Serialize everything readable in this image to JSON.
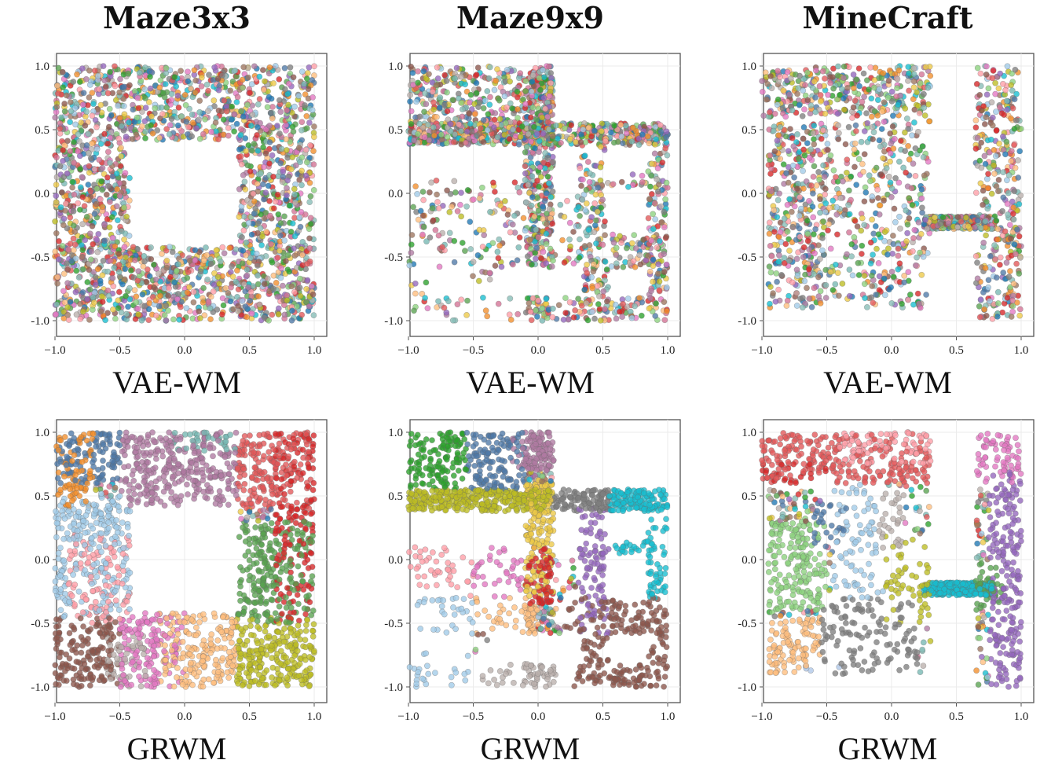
{
  "column_titles": [
    "Maze3x3",
    "Maze9x9",
    "MineCraft"
  ],
  "row_labels": [
    "VAE-WM",
    "GRWM"
  ],
  "palette": [
    "#4e79a7",
    "#f28e2b",
    "#59a14f",
    "#e15759",
    "#76b7b2",
    "#edc948",
    "#b07aa1",
    "#ff9da7",
    "#9c755f",
    "#bab0ac",
    "#8cd17d",
    "#86bcb6",
    "#d37295",
    "#a0cbe8",
    "#ffbe7d",
    "#17becf",
    "#bcbd22",
    "#7f7f7f",
    "#e377c2",
    "#8c564b",
    "#9467bd",
    "#d62728",
    "#2ca02c",
    "#1f77b4"
  ],
  "chart_data": [
    {
      "type": "scatter",
      "panel": "Maze3x3 / VAE-WM",
      "xlim": [
        -1.0,
        1.0
      ],
      "ylim": [
        -1.0,
        1.0
      ],
      "grid": true,
      "xticks": [
        "−1.0",
        "−0.5",
        "0.0",
        "0.5",
        "1.0"
      ],
      "yticks": [
        "1.0",
        "0.5",
        "0.0",
        "-0.5",
        "-1.0"
      ],
      "environment": "maze3x3",
      "coloring": "mixed",
      "free_regions": [
        [
          -1.0,
          1.0,
          -1.0,
          1.0
        ]
      ],
      "obstacles": [
        [
          -0.42,
          0.42,
          -0.42,
          0.42
        ]
      ]
    },
    {
      "type": "scatter",
      "panel": "Maze9x9 / VAE-WM",
      "xlim": [
        -1.0,
        1.0
      ],
      "ylim": [
        -1.0,
        1.0
      ],
      "grid": true,
      "xticks": [
        "−1.0",
        "−0.5",
        "0.0",
        "0.5",
        "1.0"
      ],
      "yticks": [
        "1.0",
        "0.5",
        "0.0",
        "-0.5",
        "-1.0"
      ],
      "environment": "maze9x9",
      "coloring": "mixed",
      "free_regions": [
        [
          -1.0,
          0.12,
          0.4,
          1.0
        ],
        [
          -1.0,
          1.0,
          0.38,
          0.55
        ],
        [
          -1.0,
          1.0,
          -1.0,
          0.1
        ],
        [
          -0.1,
          0.12,
          -1.0,
          1.0
        ],
        [
          0.3,
          1.0,
          -1.0,
          0.55
        ]
      ],
      "obstacles": [
        [
          0.12,
          0.32,
          0.0,
          0.38
        ],
        [
          0.52,
          0.85,
          0.15,
          0.38
        ],
        [
          0.52,
          0.85,
          -0.32,
          0.05
        ],
        [
          -0.85,
          -0.55,
          -0.82,
          -0.58
        ],
        [
          -0.35,
          0.35,
          -0.82,
          -0.58
        ],
        [
          0.55,
          0.85,
          -0.82,
          -0.58
        ]
      ]
    },
    {
      "type": "scatter",
      "panel": "MineCraft / VAE-WM",
      "xlim": [
        -1.0,
        1.0
      ],
      "ylim": [
        -1.0,
        1.0
      ],
      "grid": true,
      "xticks": [
        "−1.0",
        "−0.5",
        "0.0",
        "0.5",
        "1.0"
      ],
      "yticks": [
        "1.0",
        "0.5",
        "0.0",
        "-0.5",
        "-1.0"
      ],
      "environment": "minecraft",
      "coloring": "mixed",
      "free_regions": [
        [
          -1.0,
          0.3,
          0.6,
          1.0
        ],
        [
          -0.95,
          -0.5,
          -0.9,
          0.55
        ],
        [
          -0.5,
          0.3,
          -0.9,
          0.6
        ],
        [
          0.25,
          0.8,
          -0.28,
          -0.18
        ],
        [
          0.65,
          1.0,
          -1.0,
          1.0
        ]
      ],
      "obstacles": []
    },
    {
      "type": "scatter",
      "panel": "Maze3x3 / GRWM",
      "xlim": [
        -1.0,
        1.0
      ],
      "ylim": [
        -1.0,
        1.0
      ],
      "grid": true,
      "xticks": [
        "−1.0",
        "−0.5",
        "0.0",
        "0.5",
        "1.0"
      ],
      "yticks": [
        "1.0",
        "0.5",
        "0.0",
        "-0.5",
        "-1.0"
      ],
      "environment": "maze3x3",
      "coloring": "clustered",
      "free_regions": [
        [
          -1.0,
          1.0,
          -1.0,
          1.0
        ]
      ],
      "obstacles": [
        [
          -0.42,
          0.42,
          -0.42,
          0.42
        ]
      ]
    },
    {
      "type": "scatter",
      "panel": "Maze9x9 / GRWM",
      "xlim": [
        -1.0,
        1.0
      ],
      "ylim": [
        -1.0,
        1.0
      ],
      "grid": true,
      "xticks": [
        "−1.0",
        "−0.5",
        "0.0",
        "0.5",
        "1.0"
      ],
      "yticks": [
        "1.0",
        "0.5",
        "0.0",
        "-0.5",
        "-1.0"
      ],
      "environment": "maze9x9",
      "coloring": "clustered",
      "free_regions": [
        [
          -1.0,
          0.12,
          0.4,
          1.0
        ],
        [
          -1.0,
          1.0,
          0.38,
          0.55
        ],
        [
          -1.0,
          1.0,
          -1.0,
          0.1
        ],
        [
          -0.1,
          0.12,
          -1.0,
          1.0
        ],
        [
          0.3,
          1.0,
          -1.0,
          0.55
        ]
      ],
      "obstacles": [
        [
          0.12,
          0.32,
          0.0,
          0.38
        ],
        [
          0.52,
          0.85,
          0.15,
          0.38
        ],
        [
          0.52,
          0.85,
          -0.32,
          0.05
        ],
        [
          -0.85,
          -0.55,
          -0.82,
          -0.58
        ],
        [
          -0.35,
          0.35,
          -0.82,
          -0.58
        ],
        [
          0.55,
          0.85,
          -0.82,
          -0.58
        ]
      ]
    },
    {
      "type": "scatter",
      "panel": "MineCraft / GRWM",
      "xlim": [
        -1.0,
        1.0
      ],
      "ylim": [
        -1.0,
        1.0
      ],
      "grid": true,
      "xticks": [
        "−1.0",
        "−0.5",
        "0.0",
        "0.5",
        "1.0"
      ],
      "yticks": [
        "1.0",
        "0.5",
        "0.0",
        "-0.5",
        "-1.0"
      ],
      "environment": "minecraft",
      "coloring": "clustered",
      "free_regions": [
        [
          -1.0,
          0.3,
          0.6,
          1.0
        ],
        [
          -0.95,
          -0.5,
          -0.9,
          0.55
        ],
        [
          -0.5,
          0.3,
          -0.9,
          0.6
        ],
        [
          0.25,
          0.8,
          -0.28,
          -0.18
        ],
        [
          0.65,
          1.0,
          -1.0,
          1.0
        ]
      ],
      "obstacles": []
    }
  ]
}
